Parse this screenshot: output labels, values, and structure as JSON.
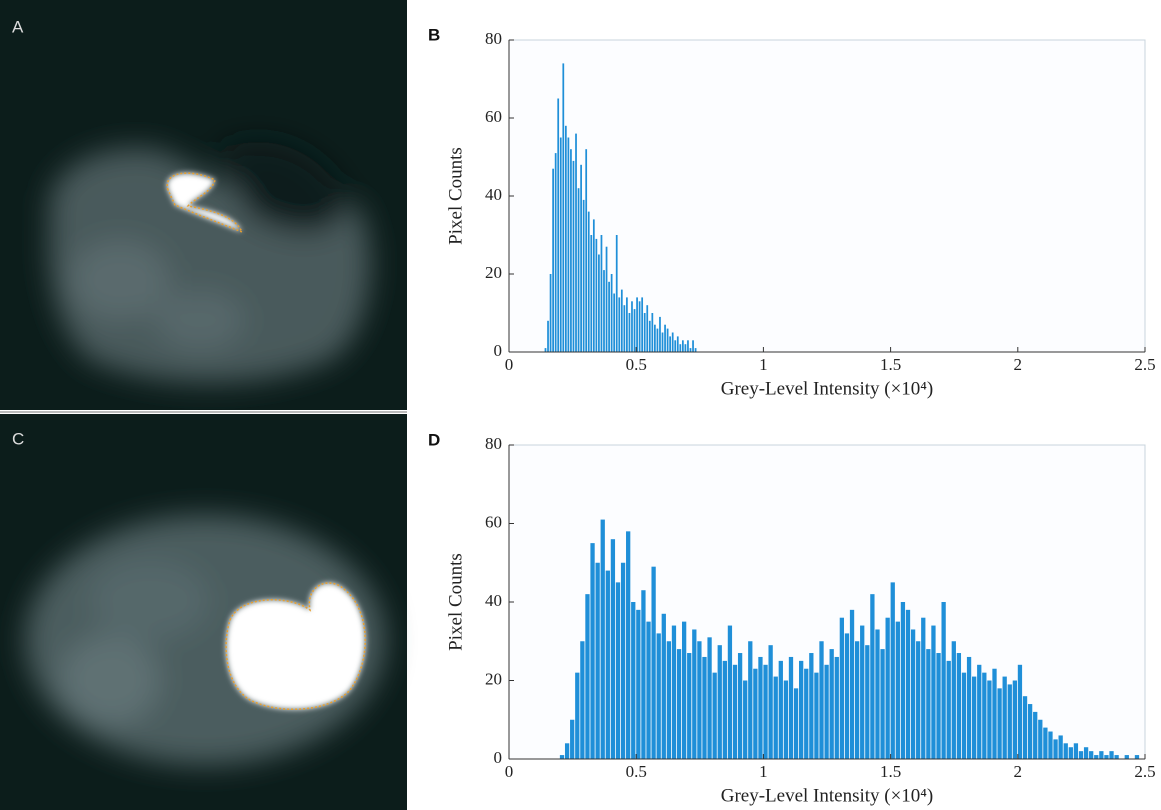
{
  "images": [
    {
      "label": "A"
    },
    {
      "label": "C"
    }
  ],
  "chart_data": [
    {
      "type": "histogram",
      "label": "B",
      "xlabel": "Grey-Level Intensity (×10⁴)",
      "ylabel": "Pixel Counts",
      "color": "#1f8fd8",
      "xlim": [
        0,
        2.5
      ],
      "xticks": [
        0,
        0.5,
        1,
        1.5,
        2,
        2.5
      ],
      "ylim": [
        0,
        80
      ],
      "yticks": [
        0,
        20,
        40,
        60,
        80
      ],
      "bins": [
        0.14,
        0.15,
        0.16,
        0.17,
        0.18,
        0.19,
        0.2,
        0.21,
        0.22,
        0.23,
        0.24,
        0.25,
        0.26,
        0.27,
        0.28,
        0.29,
        0.3,
        0.31,
        0.32,
        0.33,
        0.34,
        0.35,
        0.36,
        0.37,
        0.38,
        0.39,
        0.4,
        0.41,
        0.42,
        0.43,
        0.44,
        0.45,
        0.46,
        0.47,
        0.48,
        0.49,
        0.5,
        0.51,
        0.52,
        0.53,
        0.54,
        0.55,
        0.56,
        0.57,
        0.58,
        0.59,
        0.6,
        0.61,
        0.62,
        0.63,
        0.64,
        0.65,
        0.66,
        0.67,
        0.68,
        0.69,
        0.7,
        0.71,
        0.72,
        0.73,
        0.74
      ],
      "values": [
        1,
        8,
        20,
        47,
        51,
        65,
        55,
        74,
        58,
        55,
        52,
        49,
        56,
        42,
        48,
        39,
        52,
        36,
        30,
        34,
        29,
        25,
        30,
        21,
        27,
        18,
        20,
        15,
        30,
        14,
        16,
        12,
        14,
        10,
        13,
        11,
        14,
        13,
        14,
        10,
        12,
        8,
        10,
        7,
        6,
        9,
        5,
        7,
        6,
        4,
        5,
        3,
        4,
        2,
        3,
        2,
        3,
        1,
        3,
        1
      ]
    },
    {
      "type": "histogram",
      "label": "D",
      "xlabel": "Grey-Level Intensity (×10⁴)",
      "ylabel": "Pixel Counts",
      "color": "#1f8fd8",
      "xlim": [
        0,
        2.5
      ],
      "xticks": [
        0,
        0.5,
        1,
        1.5,
        2,
        2.5
      ],
      "ylim": [
        0,
        80
      ],
      "yticks": [
        0,
        20,
        40,
        60,
        80
      ],
      "bins": [
        0.2,
        0.22,
        0.24,
        0.26,
        0.28,
        0.3,
        0.32,
        0.34,
        0.36,
        0.38,
        0.4,
        0.42,
        0.44,
        0.46,
        0.48,
        0.5,
        0.52,
        0.54,
        0.56,
        0.58,
        0.6,
        0.62,
        0.64,
        0.66,
        0.68,
        0.7,
        0.72,
        0.74,
        0.76,
        0.78,
        0.8,
        0.82,
        0.84,
        0.86,
        0.88,
        0.9,
        0.92,
        0.94,
        0.96,
        0.98,
        1,
        1.02,
        1.04,
        1.06,
        1.08,
        1.1,
        1.12,
        1.14,
        1.16,
        1.18,
        1.2,
        1.22,
        1.24,
        1.26,
        1.28,
        1.3,
        1.32,
        1.34,
        1.36,
        1.38,
        1.4,
        1.42,
        1.44,
        1.46,
        1.48,
        1.5,
        1.52,
        1.54,
        1.56,
        1.58,
        1.6,
        1.62,
        1.64,
        1.66,
        1.68,
        1.7,
        1.72,
        1.74,
        1.76,
        1.78,
        1.8,
        1.82,
        1.84,
        1.86,
        1.88,
        1.9,
        1.92,
        1.94,
        1.96,
        1.98,
        2,
        2.02,
        2.04,
        2.06,
        2.08,
        2.1,
        2.12,
        2.14,
        2.16,
        2.18,
        2.2,
        2.22,
        2.24,
        2.26,
        2.28,
        2.3,
        2.32,
        2.34,
        2.36,
        2.38,
        2.4,
        2.42,
        2.44,
        2.46,
        2.48,
        2.5
      ],
      "values": [
        1,
        4,
        10,
        22,
        30,
        42,
        55,
        50,
        61,
        48,
        56,
        45,
        50,
        58,
        40,
        38,
        43,
        35,
        49,
        32,
        37,
        30,
        34,
        28,
        35,
        27,
        33,
        30,
        26,
        31,
        22,
        29,
        25,
        34,
        24,
        27,
        20,
        30,
        23,
        26,
        24,
        29,
        21,
        25,
        20,
        26,
        18,
        25,
        23,
        27,
        22,
        30,
        24,
        28,
        26,
        36,
        32,
        38,
        30,
        34,
        29,
        42,
        33,
        28,
        36,
        45,
        35,
        40,
        38,
        33,
        30,
        36,
        28,
        34,
        27,
        40,
        25,
        30,
        27,
        22,
        26,
        21,
        24,
        22,
        20,
        23,
        18,
        21,
        19,
        20,
        24,
        16,
        14,
        12,
        10,
        8,
        7,
        5,
        6,
        4,
        3,
        4,
        2,
        3,
        2,
        1,
        2,
        1,
        2,
        1,
        0,
        1,
        0,
        1,
        0
      ]
    }
  ]
}
